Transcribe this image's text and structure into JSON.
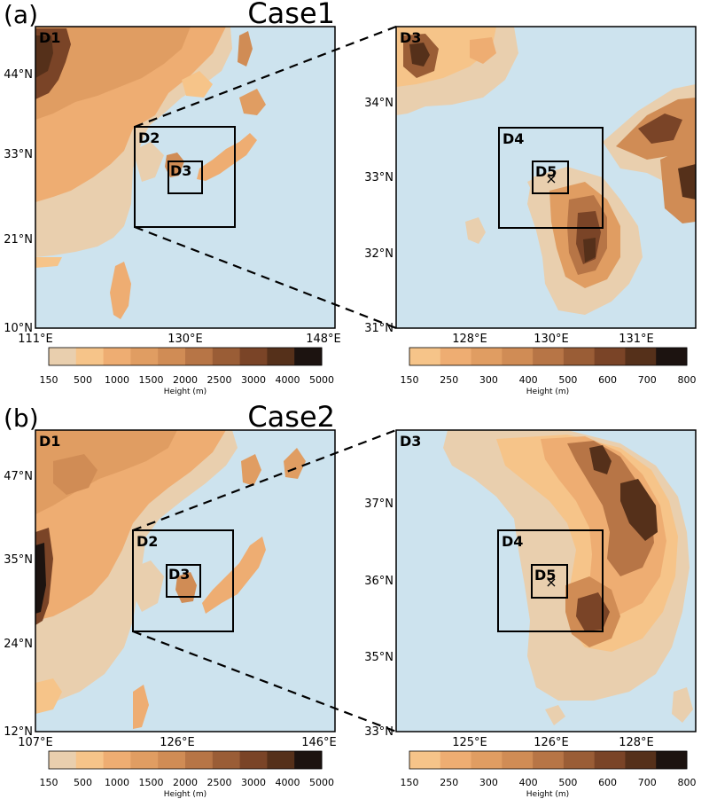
{
  "panels": [
    {
      "tag": "(a)",
      "case": "Case1",
      "left": {
        "domain_labels": [
          "D1",
          "D2",
          "D3"
        ],
        "lat_ticks": [
          "44°N",
          "33°N",
          "21°N",
          "10°N"
        ],
        "lon_ticks": [
          "111°E",
          "130°E",
          "148°E"
        ],
        "colorbar": {
          "ticks": [
            "150",
            "500",
            "1000",
            "1500",
            "2000",
            "2500",
            "3000",
            "4000",
            "5000"
          ],
          "label": "Height (m)"
        }
      },
      "right": {
        "domain_labels": [
          "D3",
          "D4",
          "D5"
        ],
        "lat_ticks": [
          "34°N",
          "33°N",
          "32°N",
          "31°N"
        ],
        "lon_ticks": [
          "128°E",
          "130°E",
          "131°E"
        ],
        "colorbar": {
          "ticks": [
            "150",
            "250",
            "300",
            "400",
            "500",
            "600",
            "700",
            "800"
          ],
          "label": "Height (m)"
        }
      }
    },
    {
      "tag": "(b)",
      "case": "Case2",
      "left": {
        "domain_labels": [
          "D1",
          "D2",
          "D3"
        ],
        "lat_ticks": [
          "47°N",
          "35°N",
          "24°N",
          "12°N"
        ],
        "lon_ticks": [
          "107°E",
          "126°E",
          "146°E"
        ],
        "colorbar": {
          "ticks": [
            "150",
            "500",
            "1000",
            "1500",
            "2000",
            "2500",
            "3000",
            "4000",
            "5000"
          ],
          "label": "Height (m)"
        }
      },
      "right": {
        "domain_labels": [
          "D3",
          "D4",
          "D5"
        ],
        "lat_ticks": [
          "37°N",
          "36°N",
          "35°N",
          "33°N"
        ],
        "lon_ticks": [
          "125°E",
          "126°E",
          "128°E"
        ],
        "colorbar": {
          "ticks": [
            "150",
            "250",
            "300",
            "400",
            "500",
            "600",
            "700",
            "800"
          ],
          "label": "Height (m)"
        }
      }
    }
  ],
  "colors": {
    "sea": "#cde3ee",
    "terrain_ramp": [
      "#e9cfae",
      "#f6c489",
      "#eead72",
      "#e09d62",
      "#d08c55",
      "#b77546",
      "#9a5d36",
      "#7a4427",
      "#55301a",
      "#1c1310"
    ]
  }
}
